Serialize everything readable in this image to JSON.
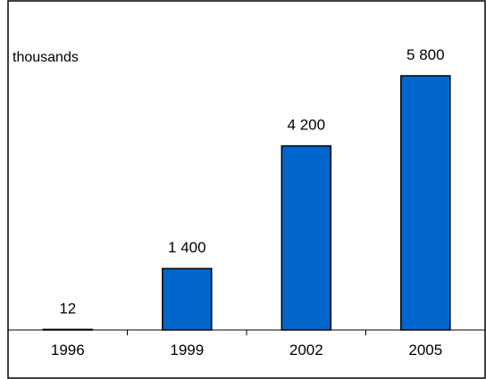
{
  "chart_data": {
    "type": "bar",
    "title": "",
    "unit_label": "thousands",
    "xlabel": "",
    "ylabel": "",
    "categories": [
      "1996",
      "1999",
      "2002",
      "2005"
    ],
    "values": [
      12,
      1400,
      4200,
      5800
    ],
    "value_labels": [
      "12",
      "1 400",
      "4 200",
      "5 800"
    ],
    "ylim": [
      0,
      7000
    ],
    "grid": false,
    "legend": "none",
    "bar_color": "#0066CC",
    "bar_edge_color": "#000000"
  }
}
